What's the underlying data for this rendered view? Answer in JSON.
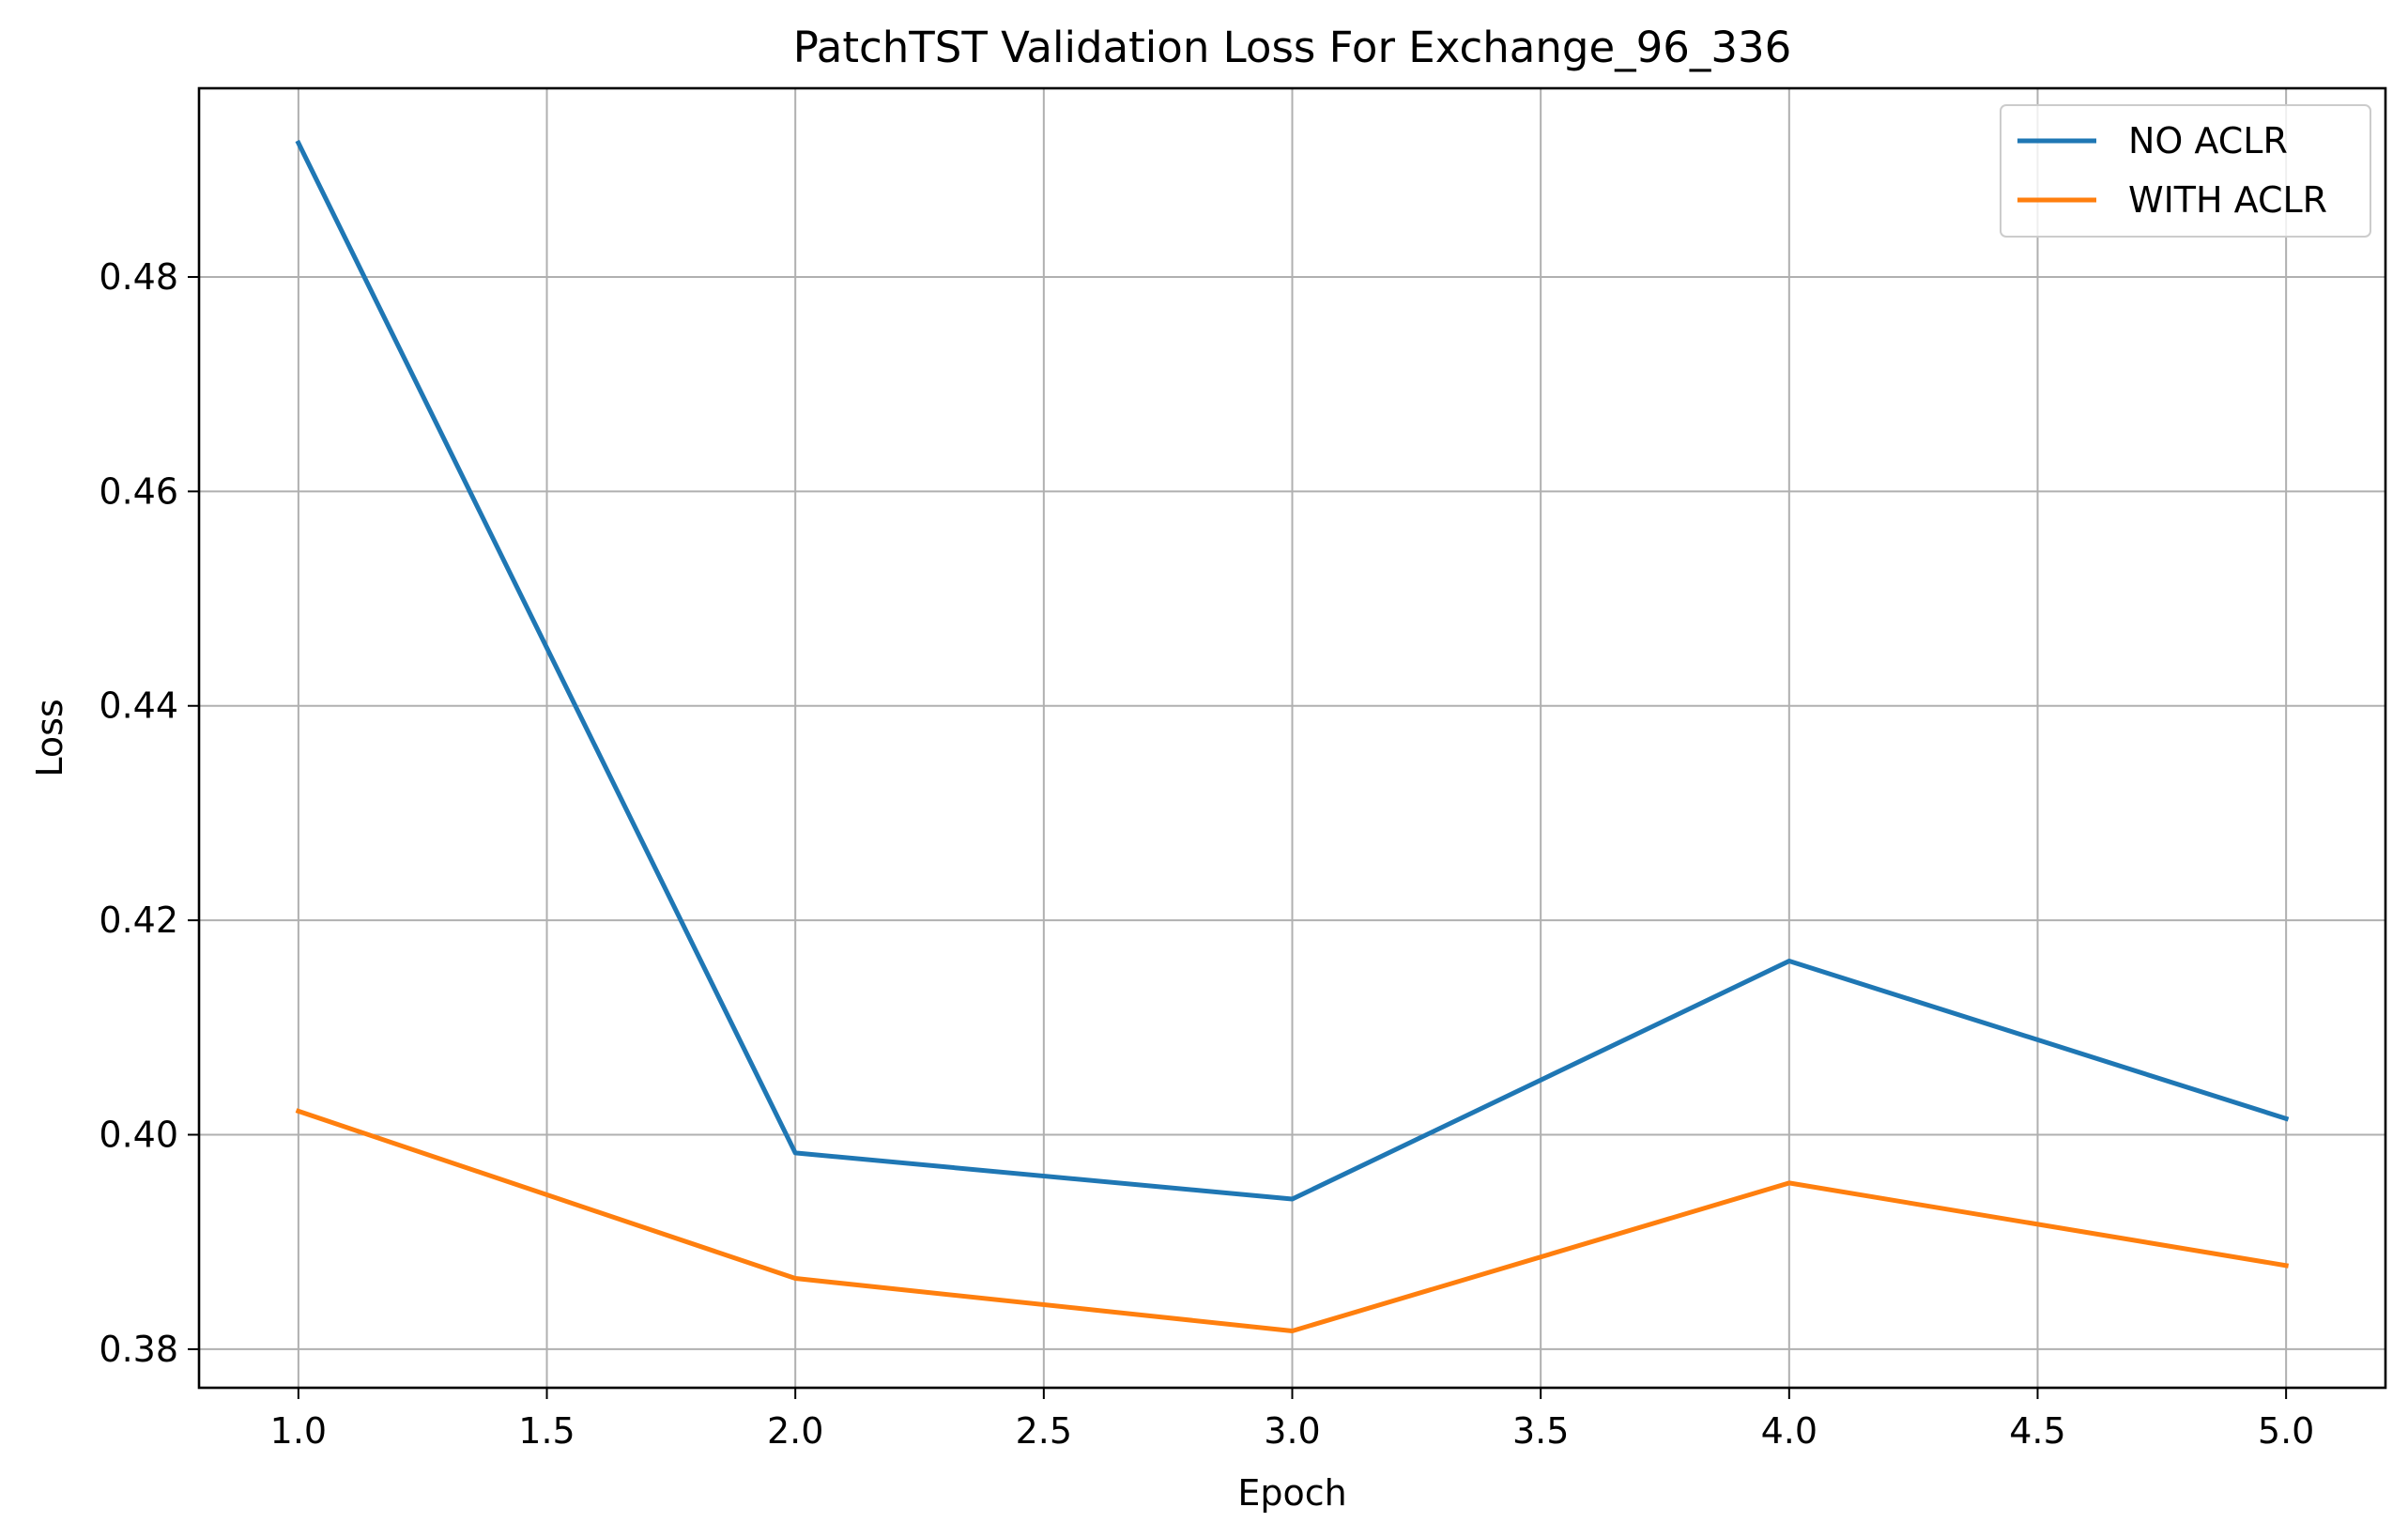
{
  "chart_data": {
    "type": "line",
    "title": "PatchTST Validation Loss For Exchange_96_336",
    "xlabel": "Epoch",
    "ylabel": "Loss",
    "x": [
      1.0,
      2.0,
      3.0,
      4.0,
      5.0
    ],
    "xticks": [
      "1.0",
      "1.5",
      "2.0",
      "2.5",
      "3.0",
      "3.5",
      "4.0",
      "4.5",
      "5.0"
    ],
    "yticks": [
      "0.38",
      "0.40",
      "0.42",
      "0.44",
      "0.46",
      "0.48"
    ],
    "xlim": [
      0.8,
      5.2
    ],
    "ylim": [
      0.3764,
      0.4976
    ],
    "grid": true,
    "legend_position": "upper-right",
    "series": [
      {
        "name": "NO ACLR",
        "color": "#1f77b4",
        "values": [
          0.4925,
          0.3983,
          0.394,
          0.4162,
          0.4015
        ]
      },
      {
        "name": "WITH ACLR",
        "color": "#ff7f0e",
        "values": [
          0.4022,
          0.3866,
          0.3817,
          0.3955,
          0.3878
        ]
      }
    ]
  }
}
